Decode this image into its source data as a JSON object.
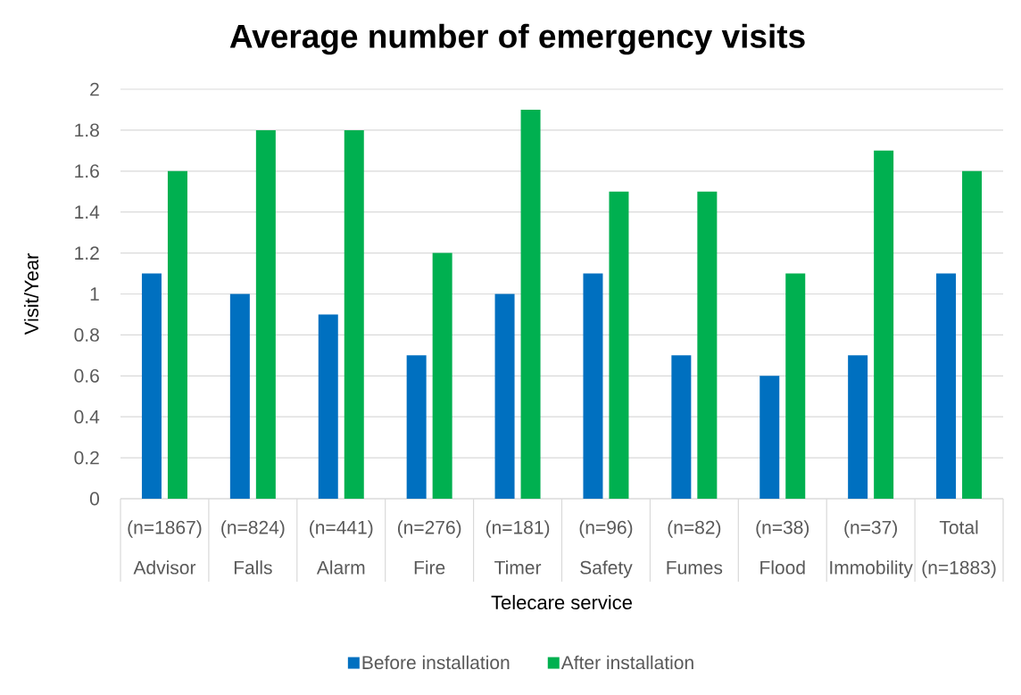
{
  "chart_data": {
    "type": "bar",
    "title": "Average number of emergency visits",
    "xlabel": "Telecare service",
    "ylabel": "Visit/Year",
    "categories": [
      "(n=1867) Advisor",
      "(n=824) Falls",
      "(n=441) Alarm",
      "(n=276) Fire",
      "(n=181) Timer",
      "(n=96) Safety",
      "(n=82) Fumes",
      "(n=38) Flood",
      "(n=37) Immobility",
      "Total (n=1883)"
    ],
    "series": [
      {
        "name": "Before installation",
        "color": "#0070c0",
        "values": [
          1.1,
          1.0,
          0.9,
          0.7,
          1.0,
          1.1,
          0.7,
          0.6,
          0.7,
          1.1
        ]
      },
      {
        "name": "After installation",
        "color": "#00b050",
        "values": [
          1.6,
          1.8,
          1.8,
          1.2,
          1.9,
          1.5,
          1.5,
          1.1,
          1.7,
          1.6
        ]
      }
    ],
    "ylim": [
      0,
      2
    ],
    "yticks": [
      0,
      0.2,
      0.4,
      0.6,
      0.8,
      1,
      1.2,
      1.4,
      1.6,
      1.8,
      2
    ],
    "grid": "y",
    "legend": "bottom"
  }
}
